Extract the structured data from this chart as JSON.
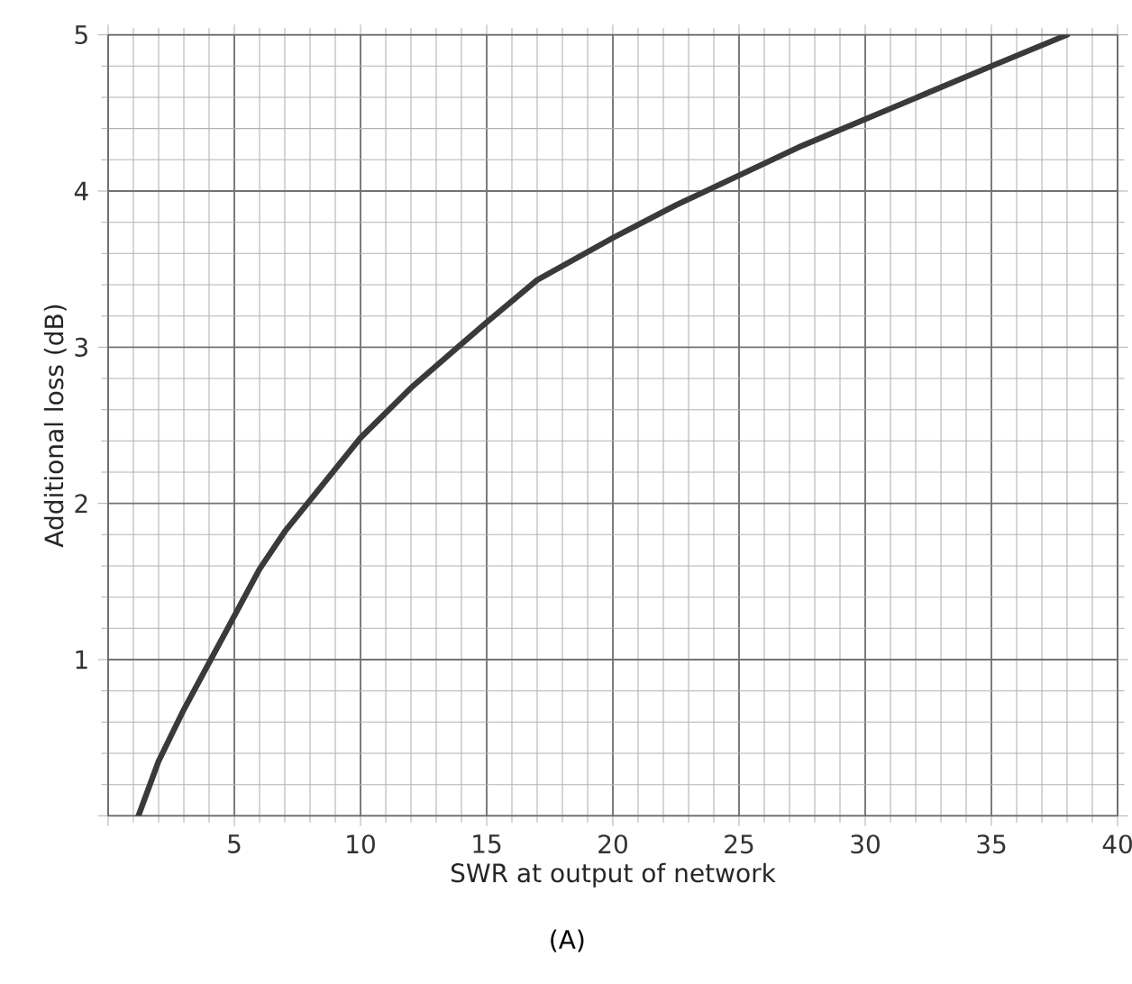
{
  "chart_data": {
    "type": "line",
    "xlabel": "SWR at output of network",
    "ylabel": "Additional loss (dB)",
    "x": [
      1.2,
      2,
      3,
      4,
      5,
      6,
      7,
      8,
      10,
      12,
      15,
      17,
      20,
      22.5,
      25,
      27.5,
      30,
      32.5,
      35,
      38
    ],
    "series": [
      {
        "color": "#3a3a3a",
        "values": [
          0,
          0.35,
          0.68,
          0.98,
          1.28,
          1.58,
          1.82,
          2.02,
          2.42,
          2.74,
          3.16,
          3.43,
          3.7,
          3.91,
          4.1,
          4.29,
          4.46,
          4.63,
          4.8,
          5
        ]
      }
    ],
    "xlim": [
      0,
      40
    ],
    "ylim": [
      0,
      5
    ],
    "xticks": [
      {
        "value": 0,
        "label": null
      },
      5,
      10,
      15,
      20,
      25,
      30,
      35,
      40
    ],
    "yticks": [
      {
        "value": 0,
        "label": null
      },
      1,
      2,
      3,
      4,
      5
    ],
    "grid": true,
    "legend": false,
    "marker": "none",
    "line_style": "solid",
    "annotations": [
      "(A)"
    ]
  }
}
